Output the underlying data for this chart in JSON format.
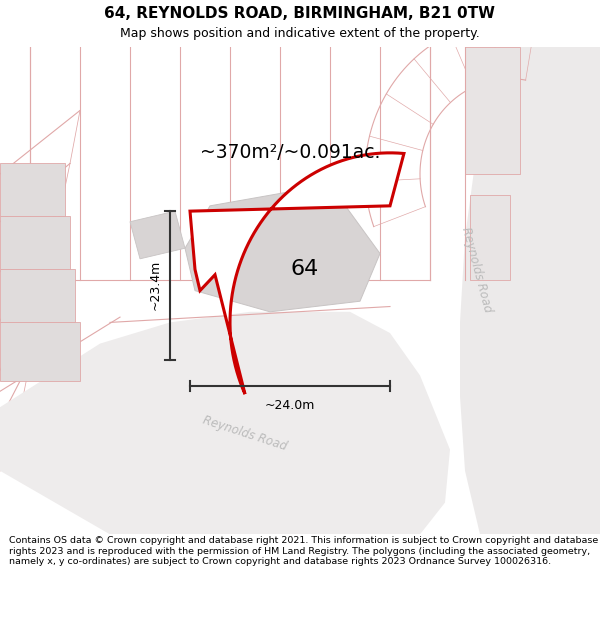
{
  "title": "64, REYNOLDS ROAD, BIRMINGHAM, B21 0TW",
  "subtitle": "Map shows position and indicative extent of the property.",
  "footer": "Contains OS data © Crown copyright and database right 2021. This information is subject to Crown copyright and database rights 2023 and is reproduced with the permission of HM Land Registry. The polygons (including the associated geometry, namely x, y co-ordinates) are subject to Crown copyright and database rights 2023 Ordnance Survey 100026316.",
  "area_label": "~370m²/~0.091ac.",
  "width_label": "~24.0m",
  "height_label": "~23.4m",
  "plot_number": "64",
  "map_bg": "#f7f4f4",
  "road_color": "#e8e4e4",
  "grid_line_color": "#e0a8a8",
  "grey_bldg_color": "#d8d4d4",
  "grey_bldg_edge": "#c8c4c4",
  "plot_fill": "#ffffff",
  "plot_edge": "#cc0000",
  "dim_color": "#333333",
  "road_label_color": "#bbbbbb",
  "road_label_1": "Reynolds Road",
  "road_label_2": "Reynolds Road"
}
